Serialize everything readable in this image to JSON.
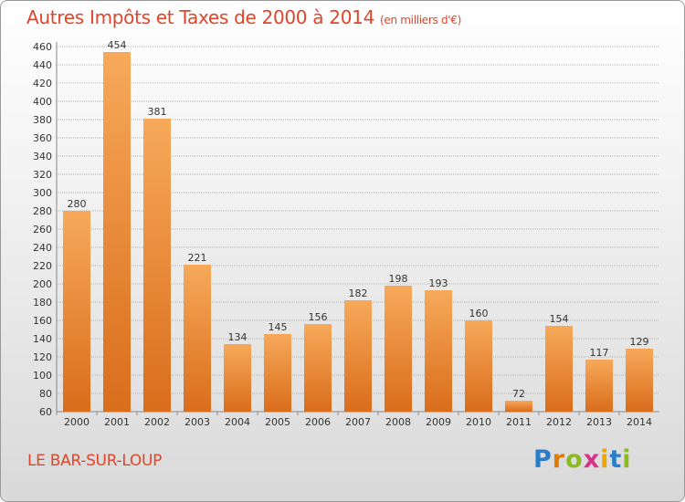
{
  "title": "Autres Impôts et Taxes de 2000 à 2014",
  "unit": "(en milliers d'€)",
  "place": "LE BAR-SUR-LOUP",
  "logo": {
    "letters": [
      "P",
      "r",
      "o",
      "x",
      "i",
      "t",
      "i"
    ],
    "colors": [
      "#2a7ec8",
      "#e07b00",
      "#8cbb1f",
      "#d6338a",
      "#f0a400",
      "#2a7ec8",
      "#8cbb1f"
    ]
  },
  "colors": {
    "bar_light": "#f7a95a",
    "bar_dark": "#d96d1c",
    "title": "#e0452a",
    "label": "#333333",
    "grid": "#b5b5b5"
  },
  "chart_data": {
    "type": "bar",
    "title": "Autres Impôts et Taxes de 2000 à 2014",
    "subtitle": "(en milliers d'€)",
    "categories": [
      "2000",
      "2001",
      "2002",
      "2003",
      "2004",
      "2005",
      "2006",
      "2007",
      "2008",
      "2009",
      "2010",
      "2011",
      "2012",
      "2013",
      "2014"
    ],
    "values": [
      280,
      454,
      381,
      221,
      134,
      145,
      156,
      182,
      198,
      193,
      160,
      72,
      154,
      117,
      129
    ],
    "yticks": [
      60,
      80,
      100,
      120,
      140,
      160,
      180,
      200,
      220,
      240,
      260,
      280,
      300,
      320,
      340,
      360,
      380,
      400,
      420,
      440,
      460
    ],
    "ylim": [
      60,
      460
    ],
    "grid": true,
    "data_labels": true
  }
}
